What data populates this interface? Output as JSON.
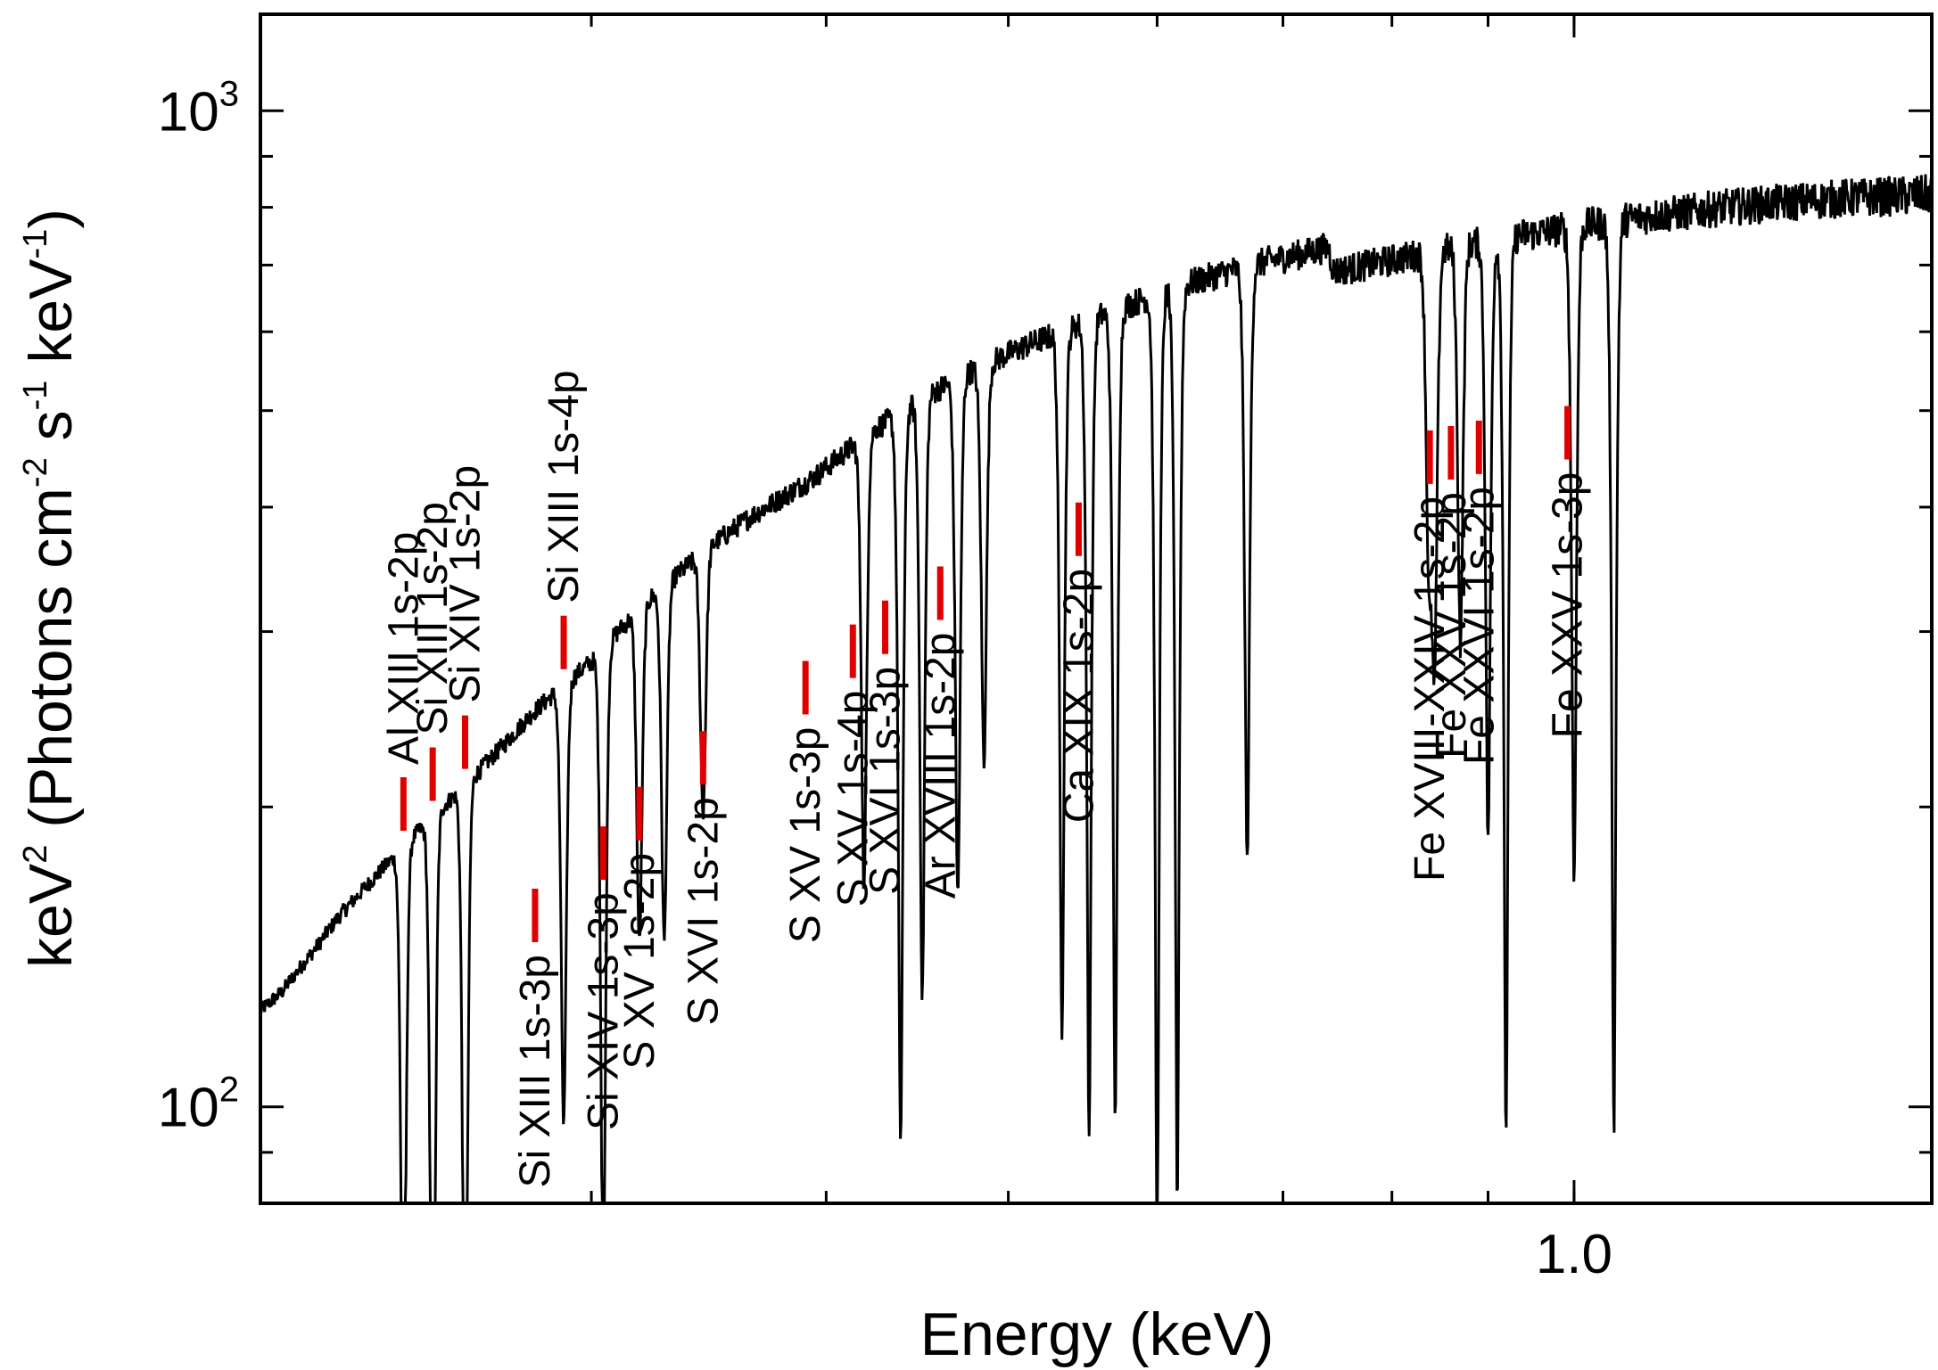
{
  "chart_data": {
    "type": "line",
    "xlabel": "Energy (keV)",
    "ylabel": {
      "text": "keV",
      "sup1": "2",
      "mid": " (Photons cm",
      "sup2": "-2",
      "mid2": " s",
      "sup3": "-1",
      "mid3": " keV",
      "sup4": "-1",
      "end": ")"
    },
    "x_scale": "log",
    "y_scale": "log",
    "xlim": [
      0.2,
      1.55
    ],
    "ylim": [
      80,
      1250
    ],
    "x_tick_labels": [
      {
        "value": 1.0,
        "label": "1.0"
      }
    ],
    "x_minor_ticks": [
      0.2,
      0.3,
      0.4,
      0.5,
      0.6,
      0.7,
      0.8,
      0.9,
      1.0
    ],
    "y_tick_labels": [
      {
        "value": 100,
        "base": "10",
        "exp": "2"
      },
      {
        "value": 1000,
        "base": "10",
        "exp": "3"
      }
    ],
    "y_minor_ticks": [
      90,
      200,
      300,
      400,
      500,
      600,
      700,
      800,
      900
    ],
    "grid": false,
    "series": [
      {
        "color": "#000000",
        "continuum": [
          [
            0.2,
            125
          ],
          [
            0.205,
            130
          ],
          [
            0.21,
            138
          ],
          [
            0.215,
            146
          ],
          [
            0.22,
            155
          ],
          [
            0.23,
            170
          ],
          [
            0.24,
            185
          ],
          [
            0.25,
            200
          ],
          [
            0.26,
            215
          ],
          [
            0.27,
            232
          ],
          [
            0.28,
            250
          ],
          [
            0.29,
            265
          ],
          [
            0.3,
            280
          ],
          [
            0.31,
            300
          ],
          [
            0.32,
            320
          ],
          [
            0.335,
            345
          ],
          [
            0.35,
            370
          ],
          [
            0.365,
            392
          ],
          [
            0.38,
            410
          ],
          [
            0.395,
            430
          ],
          [
            0.41,
            455
          ],
          [
            0.425,
            480
          ],
          [
            0.44,
            500
          ],
          [
            0.455,
            520
          ],
          [
            0.47,
            540
          ],
          [
            0.49,
            560
          ],
          [
            0.51,
            580
          ],
          [
            0.53,
            597
          ],
          [
            0.55,
            615
          ],
          [
            0.575,
            635
          ],
          [
            0.6,
            655
          ],
          [
            0.63,
            675
          ],
          [
            0.66,
            693
          ],
          [
            0.69,
            708
          ],
          [
            0.72,
            720
          ],
          [
            0.74,
            730
          ],
          [
            0.745,
            690
          ],
          [
            0.77,
            698
          ],
          [
            0.8,
            708
          ],
          [
            0.84,
            722
          ],
          [
            0.88,
            735
          ],
          [
            0.92,
            746
          ],
          [
            0.96,
            755
          ],
          [
            1.0,
            765
          ],
          [
            1.05,
            775
          ],
          [
            1.1,
            785
          ],
          [
            1.15,
            792
          ],
          [
            1.2,
            800
          ],
          [
            1.3,
            810
          ],
          [
            1.4,
            818
          ],
          [
            1.5,
            822
          ],
          [
            1.55,
            825
          ]
        ],
        "absorption_lines": [
          {
            "e": 0.2383,
            "depth": 0.75
          },
          {
            "e": 0.247,
            "depth": 0.86
          },
          {
            "e": 0.257,
            "depth": 0.82
          },
          {
            "e": 0.29,
            "depth": 0.64
          },
          {
            "e": 0.3044,
            "depth": 0.8
          },
          {
            "e": 0.3182,
            "depth": 0.54
          },
          {
            "e": 0.328,
            "depth": 0.56
          },
          {
            "e": 0.344,
            "depth": 0.45
          },
          {
            "e": 0.419,
            "depth": 0.65
          },
          {
            "e": 0.4382,
            "depth": 0.82
          },
          {
            "e": 0.45,
            "depth": 0.75
          },
          {
            "e": 0.47,
            "depth": 0.7
          },
          {
            "e": 0.4853,
            "depth": 0.6
          },
          {
            "e": 0.534,
            "depth": 0.8
          },
          {
            "e": 0.552,
            "depth": 0.85
          },
          {
            "e": 0.57,
            "depth": 0.85
          },
          {
            "e": 0.6,
            "depth": 0.9
          },
          {
            "e": 0.615,
            "depth": 0.88
          },
          {
            "e": 0.67,
            "depth": 0.75
          },
          {
            "e": 0.837,
            "depth": 0.5
          },
          {
            "e": 0.843,
            "depth": 0.6
          },
          {
            "e": 0.87,
            "depth": 0.6
          },
          {
            "e": 0.9,
            "depth": 0.75
          },
          {
            "e": 0.92,
            "depth": 0.88
          },
          {
            "e": 1.0,
            "depth": 0.78
          },
          {
            "e": 1.05,
            "depth": 0.88
          }
        ]
      }
    ],
    "annotations": [
      {
        "label": "Al XIII 1s-2p",
        "energy": 0.2383,
        "side": "above"
      },
      {
        "label": "Si XIII 1s-2p",
        "energy": 0.247,
        "side": "above"
      },
      {
        "label": "Si XIV 1s-2p",
        "energy": 0.257,
        "side": "above"
      },
      {
        "label": "Si XIII 1s-4p",
        "energy": 0.29,
        "side": "above"
      },
      {
        "label": "Si XIII 1s-3p",
        "energy": 0.28,
        "side": "below"
      },
      {
        "label": "Si XIV 1s-3p",
        "energy": 0.3044,
        "side": "below"
      },
      {
        "label": "S XV 1s-2p",
        "energy": 0.3182,
        "side": "below"
      },
      {
        "label": "S XVI 1s-2p",
        "energy": 0.344,
        "side": "below"
      },
      {
        "label": "S XV 1s-3p",
        "energy": 0.39,
        "side": "below"
      },
      {
        "label": "S XV 1s-4p",
        "energy": 0.4133,
        "side": "below"
      },
      {
        "label": "S XVI 1s-3p",
        "energy": 0.43,
        "side": "below"
      },
      {
        "label": "Ar XVIII 1s-2p",
        "energy": 0.46,
        "side": "below"
      },
      {
        "label": "Ca XIX 1s-2p",
        "energy": 0.545,
        "side": "below"
      },
      {
        "label": "Fe XVIII-XXIV 1s-2p",
        "energy": 0.838,
        "side": "below"
      },
      {
        "label": "Fe XXV 1s-2p",
        "energy": 0.86,
        "side": "below"
      },
      {
        "label": "Fe XXVI 1s-2p",
        "energy": 0.89,
        "side": "below"
      },
      {
        "label": "Fe XXV 1s-3p",
        "energy": 0.992,
        "side": "below"
      }
    ]
  }
}
